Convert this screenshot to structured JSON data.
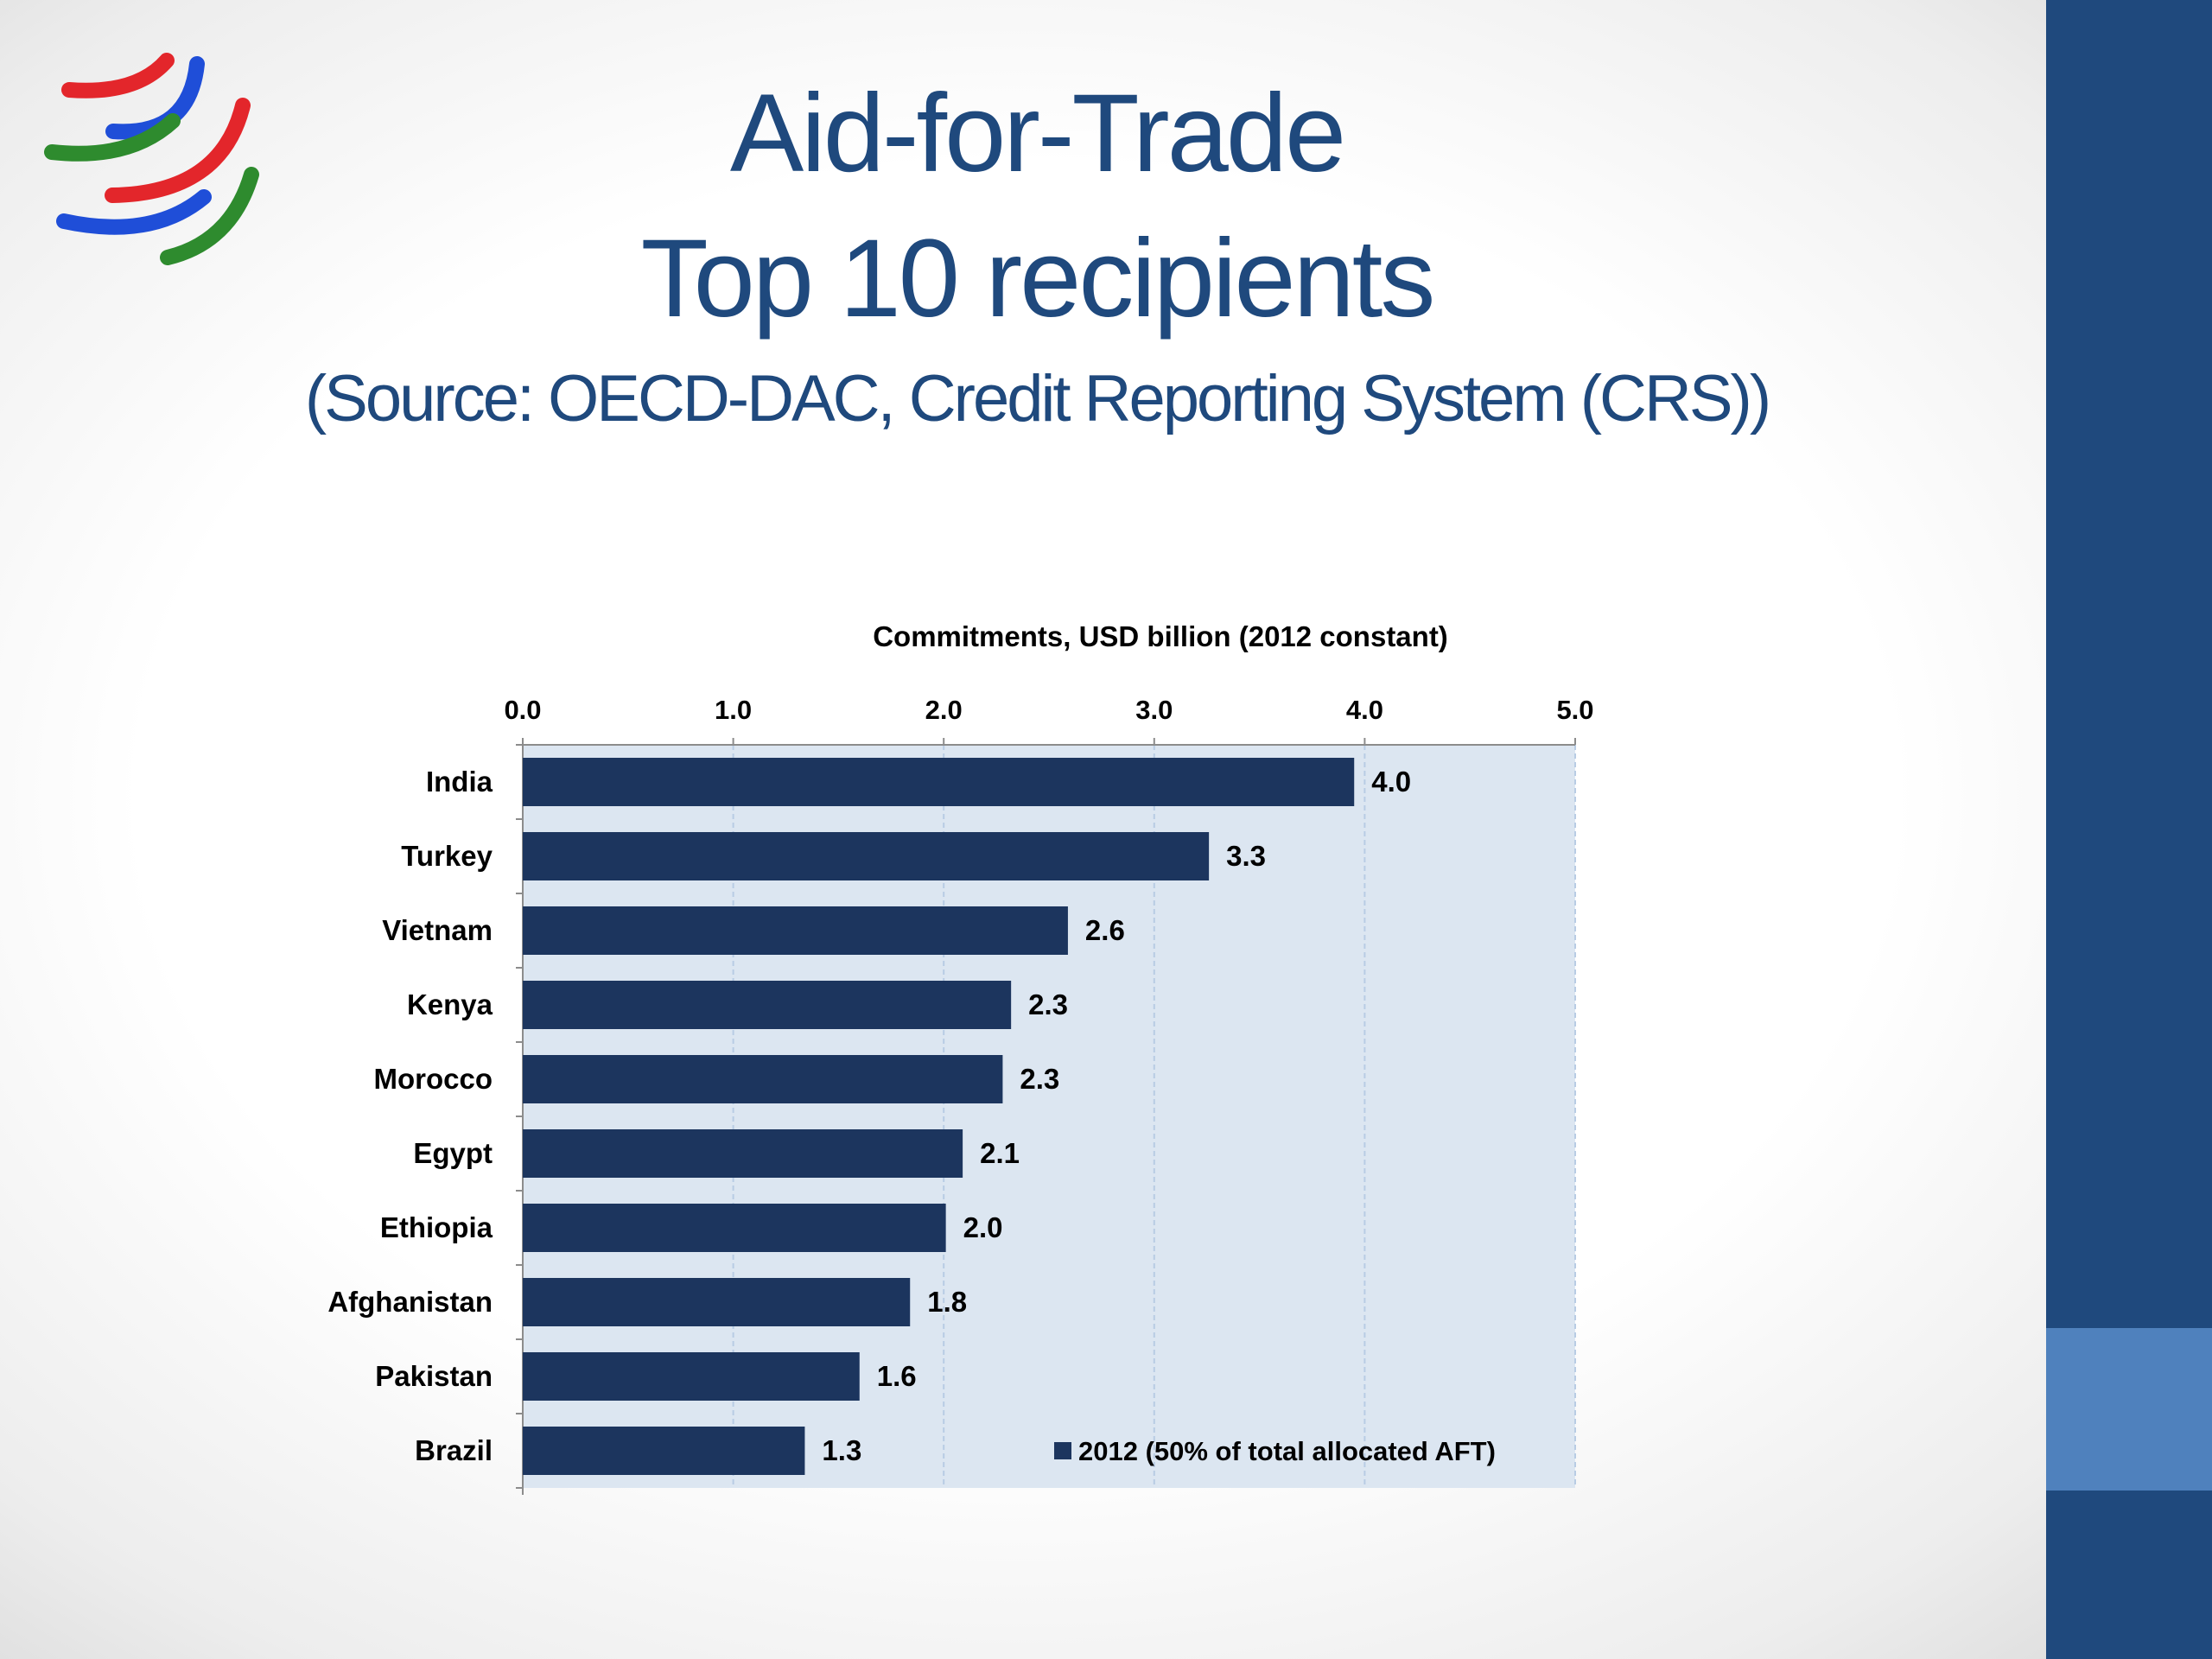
{
  "slide": {
    "title_line_1": "Aid-for-Trade",
    "title_line_2": "Top 10 recipients",
    "source_line": "(Source: OECD-DAC, Credit Reporting System (CRS))",
    "logo_icon": "wto-logo-icon",
    "colors": {
      "title": "#1f497d",
      "side_bar": "#1f497d",
      "side_accent": "#4f81bd",
      "logo_red": "#e3262b",
      "logo_blue": "#1f4ed8",
      "logo_green": "#2e8b2e"
    }
  },
  "chart_data": {
    "type": "bar",
    "orientation": "horizontal",
    "xlabel": "Commitments, USD billion (2012 constant)",
    "xlim": [
      0,
      5
    ],
    "ticks": [
      "0.0",
      "1.0",
      "2.0",
      "3.0",
      "4.0",
      "5.0"
    ],
    "tick_values": [
      0,
      1,
      2,
      3,
      4,
      5
    ],
    "grid": true,
    "legend_position": "bottom-right",
    "categories": [
      "India",
      "Turkey",
      "Vietnam",
      "Kenya",
      "Morocco",
      "Egypt",
      "Ethiopia",
      "Afghanistan",
      "Pakistan",
      "Brazil"
    ],
    "series": [
      {
        "name": "2012 (50% of total allocated AFT)",
        "values": [
          3.95,
          3.26,
          2.59,
          2.32,
          2.28,
          2.09,
          2.01,
          1.84,
          1.6,
          1.34
        ],
        "labels": [
          "4.0",
          "3.3",
          "2.6",
          "2.3",
          "2.3",
          "2.1",
          "2.0",
          "1.8",
          "1.6",
          "1.3"
        ],
        "color": "#1c355e"
      }
    ],
    "plot_background": "#dce6f1",
    "grid_color": "#b8cce4"
  }
}
